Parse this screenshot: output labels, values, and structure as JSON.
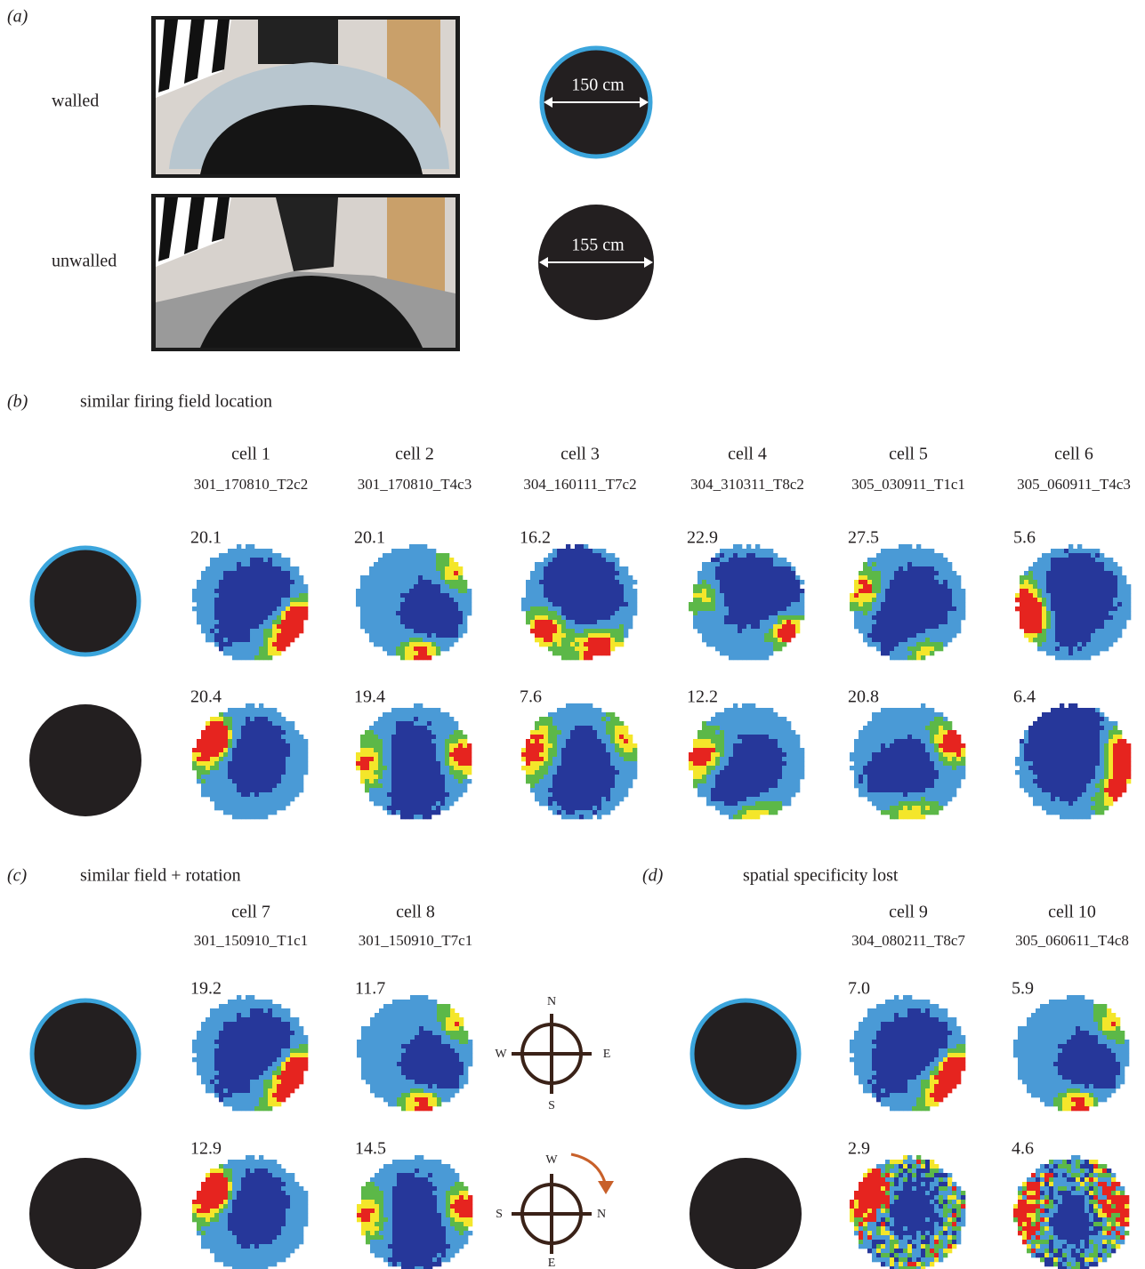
{
  "panel_a": {
    "label": "(a)",
    "rows": [
      {
        "name": "walled",
        "diameter": "150 cm"
      },
      {
        "name": "unwalled",
        "diameter": "155 cm"
      }
    ]
  },
  "panel_b": {
    "label": "(b)",
    "title": "similar firing field location",
    "cells": [
      {
        "name": "cell 1",
        "id": "301_170810_T2c2",
        "walled_peak": "20.1",
        "unwalled_peak": "20.4"
      },
      {
        "name": "cell 2",
        "id": "301_170810_T4c3",
        "walled_peak": "20.1",
        "unwalled_peak": "19.4"
      },
      {
        "name": "cell 3",
        "id": "304_160111_T7c2",
        "walled_peak": "16.2",
        "unwalled_peak": "7.6"
      },
      {
        "name": "cell 4",
        "id": "304_310311_T8c2",
        "walled_peak": "22.9",
        "unwalled_peak": "12.2"
      },
      {
        "name": "cell 5",
        "id": "305_030911_T1c1",
        "walled_peak": "27.5",
        "unwalled_peak": "20.8"
      },
      {
        "name": "cell 6",
        "id": "305_060911_T4c3",
        "walled_peak": "5.6",
        "unwalled_peak": "6.4"
      }
    ]
  },
  "panel_c": {
    "label": "(c)",
    "title": "similar field + rotation",
    "cells": [
      {
        "name": "cell 7",
        "id": "301_150910_T1c1",
        "walled_peak": "19.2",
        "unwalled_peak": "12.9"
      },
      {
        "name": "cell 8",
        "id": "301_150910_T7c1",
        "walled_peak": "11.7",
        "unwalled_peak": "14.5"
      }
    ],
    "compass_walled": {
      "top": "N",
      "right": "E",
      "bottom": "S",
      "left": "W"
    },
    "compass_unwalled": {
      "top": "W",
      "right": "N",
      "bottom": "E",
      "left": "S"
    }
  },
  "panel_d": {
    "label": "(d)",
    "title": "spatial specificity lost",
    "cells": [
      {
        "name": "cell 9",
        "id": "304_080211_T8c7",
        "walled_peak": "7.0",
        "unwalled_peak": "2.9"
      },
      {
        "name": "cell 10",
        "id": "305_060611_T4c8",
        "walled_peak": "5.9",
        "unwalled_peak": "4.6"
      }
    ]
  }
}
